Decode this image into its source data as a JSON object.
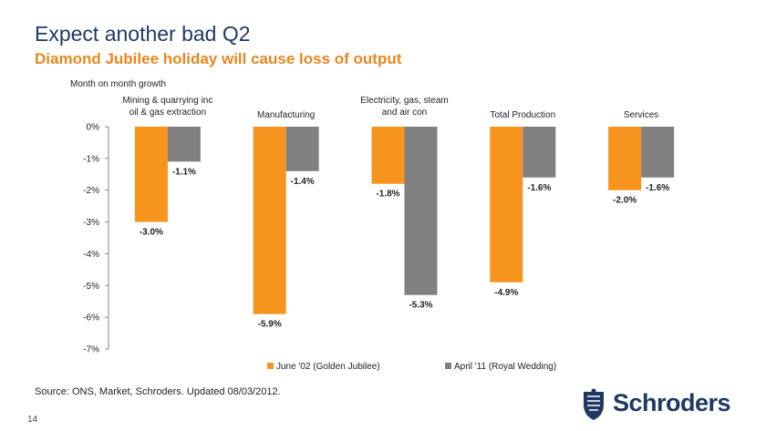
{
  "page": {
    "title": "Expect another bad Q2",
    "subtitle": "Diamond Jubilee holiday will cause loss of output",
    "source": "Source: ONS, Market, Schroders. Updated 08/03/2012.",
    "page_number": "14",
    "logo_text": "Schroders",
    "colors": {
      "title": "#1f3864",
      "subtitle": "#e8871e",
      "series1": "#f7941d",
      "series2": "#808080"
    }
  },
  "chart_data": {
    "type": "bar",
    "title": "",
    "ylabel": "Month on month growth",
    "xlabel": "",
    "ylim": [
      -7,
      0
    ],
    "yticks": [
      0,
      -1,
      -2,
      -3,
      -4,
      -5,
      -6,
      -7
    ],
    "ytick_labels": [
      "0%",
      "-1%",
      "-2%",
      "-3%",
      "-4%",
      "-5%",
      "-6%",
      "-7%"
    ],
    "categories": [
      [
        "Mining & quarrying inc",
        "oil & gas extraction"
      ],
      [
        "Manufacturing"
      ],
      [
        "Electricity, gas, steam",
        "and air con"
      ],
      [
        "Total Production"
      ],
      [
        "Services"
      ]
    ],
    "series": [
      {
        "name": "June '02 (Golden Jubilee)",
        "color": "#f7941d",
        "values": [
          -3.0,
          -5.9,
          -1.8,
          -4.9,
          -2.0
        ],
        "labels": [
          "-3.0%",
          "-5.9%",
          "-1.8%",
          "-4.9%",
          "-2.0%"
        ]
      },
      {
        "name": "April '11 (Royal Wedding)",
        "color": "#808080",
        "values": [
          -1.1,
          -1.4,
          -5.3,
          -1.6,
          -1.6
        ],
        "labels": [
          "-1.1%",
          "-1.4%",
          "-5.3%",
          "-1.6%",
          "-1.6%"
        ]
      }
    ],
    "grid": false,
    "legend_position": "bottom"
  }
}
